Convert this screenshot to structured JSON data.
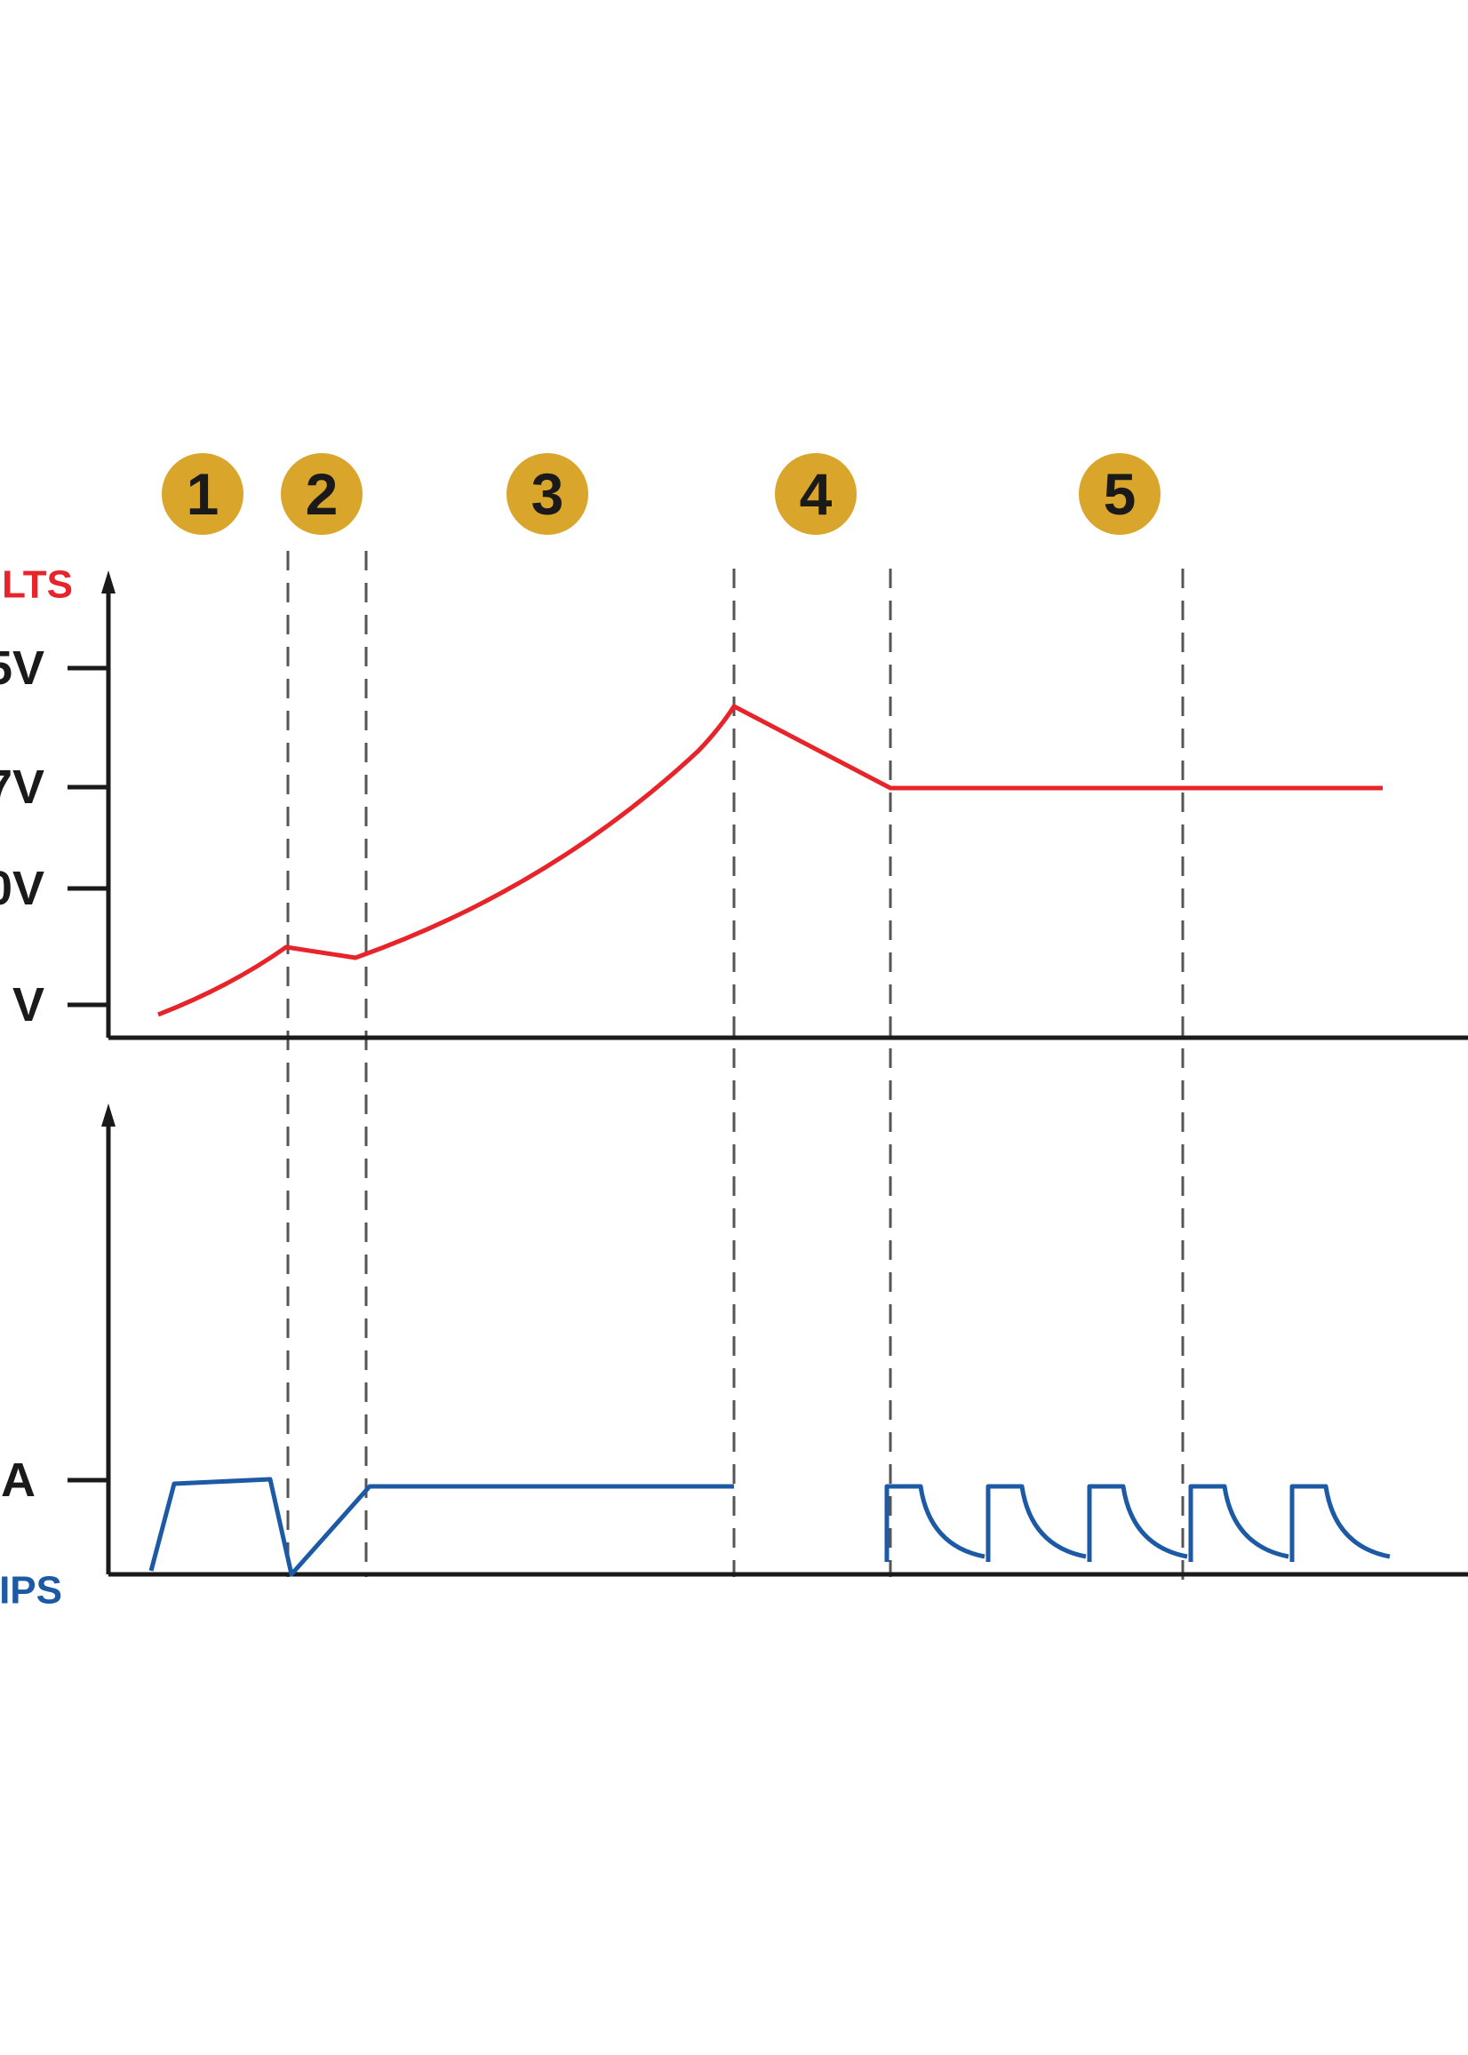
{
  "colors": {
    "voltage": "#e8242b",
    "current": "#1c5aa5",
    "axis": "#1a1a1a",
    "marker_fill": "#d9a52b",
    "marker_text": "#1a1a1a",
    "divider": "#555555"
  },
  "stage_markers": [
    "1",
    "2",
    "3",
    "4",
    "5"
  ],
  "chart_data": [
    {
      "type": "line",
      "panel": "voltage",
      "ylabel": "LTS",
      "y_ticks": [
        "5V",
        "7V",
        "0V",
        "V"
      ],
      "x": [
        0.06,
        0.2,
        0.28,
        0.52,
        0.7,
        1.0
      ],
      "series": [
        {
          "values": [
            0.02,
            0.2,
            0.18,
            0.67,
            0.5,
            0.5
          ]
        }
      ]
    },
    {
      "type": "line",
      "panel": "current",
      "ylabel": "IPS",
      "y_ticks": [
        "A"
      ],
      "segments": [
        {
          "x": [
            0.05,
            0.07,
            0.17,
            0.19,
            0.27,
            0.66
          ],
          "values": [
            0.0,
            0.95,
            1.0,
            0.0,
            0.95,
            0.95
          ]
        }
      ],
      "pulses": {
        "count": 5,
        "x_start": 0.86,
        "x_end": 1.31,
        "high": 0.95,
        "low": 0.2
      }
    }
  ]
}
